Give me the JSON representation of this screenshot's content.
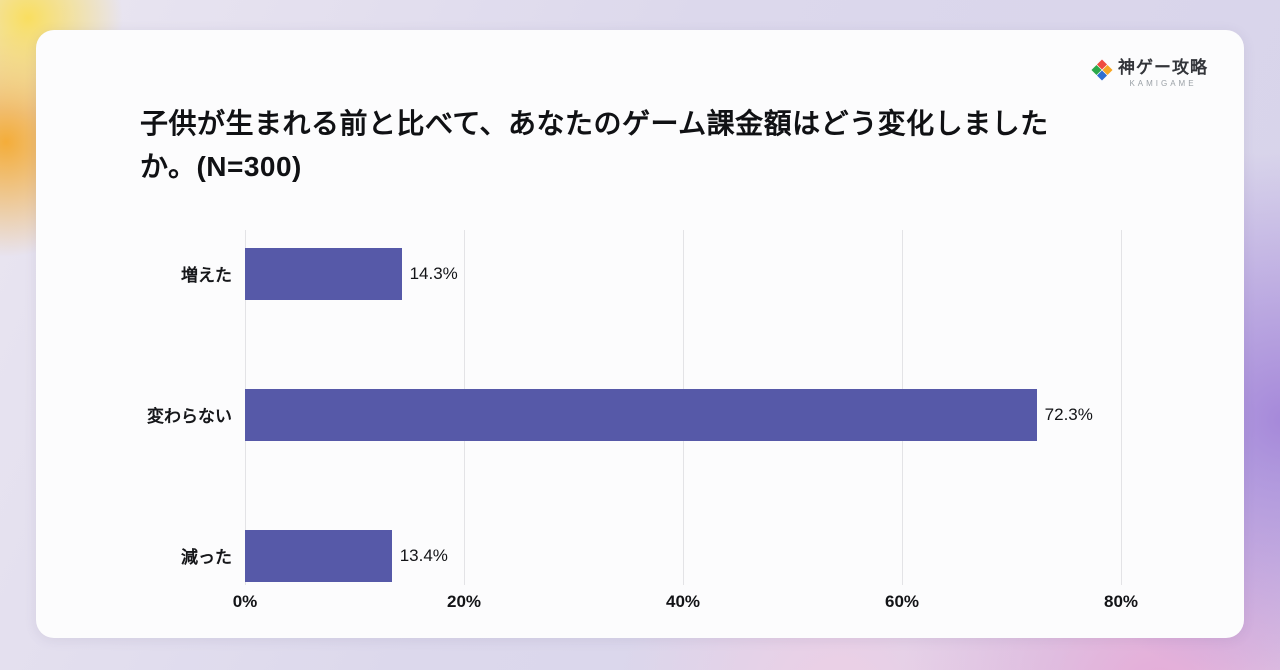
{
  "logo": {
    "name": "神ゲー攻略",
    "subtitle": "KAMIGAME"
  },
  "title": "子供が生まれる前と比べて、あなたのゲーム課金額はどう変化しましたか。(N=300)",
  "chart_data": {
    "type": "bar",
    "orientation": "horizontal",
    "title": "子供が生まれる前と比べて、あなたのゲーム課金額はどう変化しましたか。(N=300)",
    "sample_size": "N=300",
    "categories": [
      "増えた",
      "変わらない",
      "減った"
    ],
    "values": [
      14.3,
      72.3,
      13.4
    ],
    "value_labels": [
      "14.3%",
      "72.3%",
      "13.4%"
    ],
    "x_ticks": [
      "0%",
      "20%",
      "40%",
      "60%",
      "80%"
    ],
    "x_tick_values": [
      0,
      20,
      40,
      60,
      80
    ],
    "xlim": [
      0,
      80
    ],
    "bar_color": "#5659a8",
    "grid": true,
    "legend": false
  }
}
